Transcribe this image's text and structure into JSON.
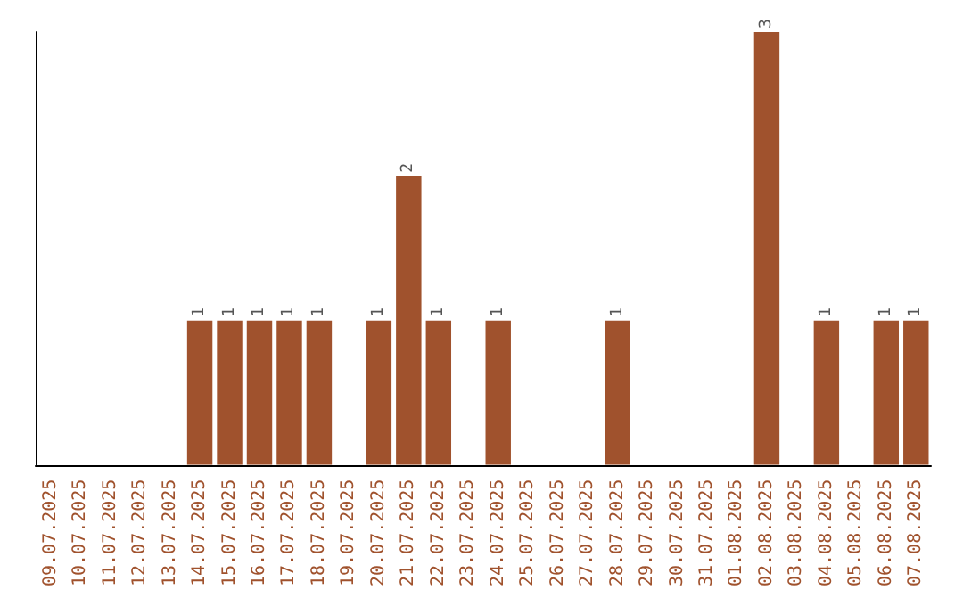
{
  "chart_data": {
    "type": "bar",
    "categories": [
      "09.07.2025",
      "10.07.2025",
      "11.07.2025",
      "12.07.2025",
      "13.07.2025",
      "14.07.2025",
      "15.07.2025",
      "16.07.2025",
      "17.07.2025",
      "18.07.2025",
      "19.07.2025",
      "20.07.2025",
      "21.07.2025",
      "22.07.2025",
      "23.07.2025",
      "24.07.2025",
      "25.07.2025",
      "26.07.2025",
      "27.07.2025",
      "28.07.2025",
      "29.07.2025",
      "30.07.2025",
      "31.07.2025",
      "01.08.2025",
      "02.08.2025",
      "03.08.2025",
      "04.08.2025",
      "05.08.2025",
      "06.08.2025",
      "07.08.2025"
    ],
    "values": [
      0,
      0,
      0,
      0,
      0,
      1,
      1,
      1,
      1,
      1,
      0,
      1,
      2,
      1,
      0,
      1,
      0,
      0,
      0,
      1,
      0,
      0,
      0,
      0,
      3,
      0,
      1,
      0,
      1,
      1
    ],
    "value_labels": [
      null,
      null,
      null,
      null,
      null,
      "1",
      "1",
      "1",
      "1",
      "1",
      null,
      "1",
      "2",
      "1",
      null,
      "1",
      null,
      null,
      null,
      "1",
      null,
      null,
      null,
      null,
      "3",
      null,
      "1",
      null,
      "1",
      "1"
    ],
    "color": "#a0522d",
    "grid": false,
    "tick_labels": "x"
  }
}
